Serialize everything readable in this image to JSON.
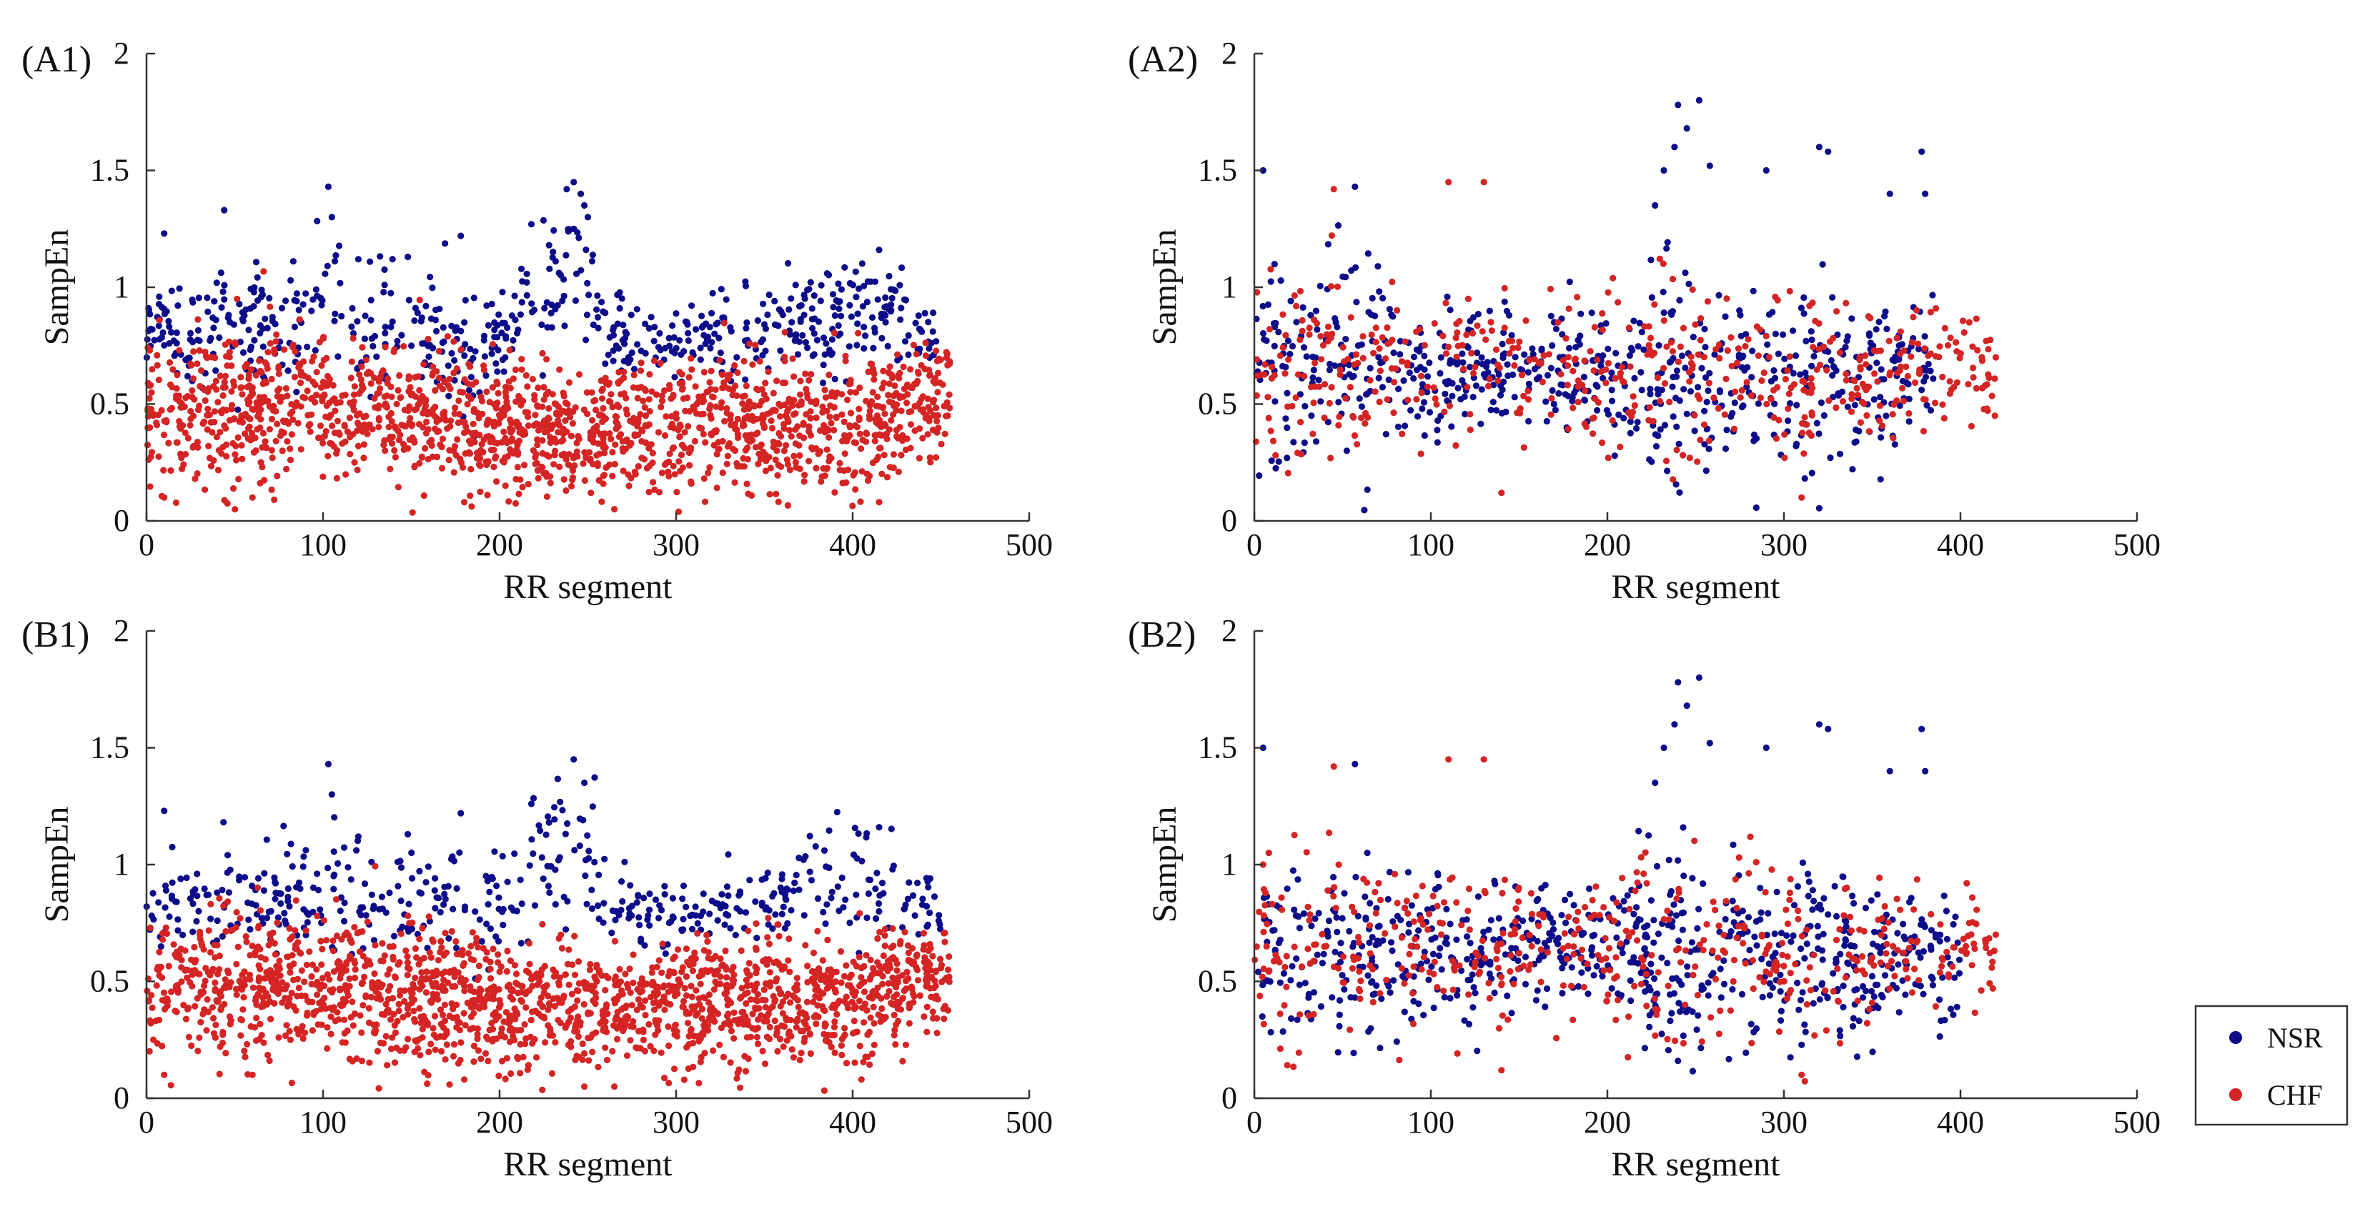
{
  "colors": {
    "NSR": "#0d0d8a",
    "CHF": "#d42424",
    "axis": "#333333"
  },
  "legend": {
    "items": [
      {
        "label": "NSR",
        "color": "#0d0d8a"
      },
      {
        "label": "CHF",
        "color": "#d42424"
      }
    ]
  },
  "chart_data": [
    {
      "id": "A1",
      "panel_label": "(A1)",
      "type": "scatter",
      "xlabel": "RR segment",
      "ylabel": "SampEn",
      "xlim": [
        0,
        500
      ],
      "ylim": [
        0,
        2
      ],
      "xticks": [
        "0",
        "100",
        "200",
        "300",
        "400",
        "500"
      ],
      "yticks": [
        "0",
        "0.5",
        "1",
        "1.5",
        "2"
      ],
      "series": [
        {
          "name": "NSR",
          "color": "#0d0d8a",
          "x_range": [
            0,
            450
          ],
          "n": 620,
          "profile": [
            [
              0,
              0.8,
              0.12
            ],
            [
              50,
              0.82,
              0.12
            ],
            [
              100,
              0.85,
              0.17
            ],
            [
              150,
              0.8,
              0.15
            ],
            [
              200,
              0.72,
              0.12
            ],
            [
              240,
              1.15,
              0.2
            ],
            [
              260,
              0.8,
              0.12
            ],
            [
              300,
              0.78,
              0.08
            ],
            [
              350,
              0.85,
              0.1
            ],
            [
              400,
              0.9,
              0.12
            ],
            [
              450,
              0.78,
              0.08
            ]
          ],
          "highlights": [
            [
              10,
              1.23
            ],
            [
              44,
              1.33
            ],
            [
              103,
              1.43
            ],
            [
              105,
              1.3
            ],
            [
              120,
              1.12
            ],
            [
              148,
              1.13
            ],
            [
              178,
              1.22
            ],
            [
              218,
              1.27
            ],
            [
              228,
              1.18
            ],
            [
              238,
              1.42
            ],
            [
              242,
              1.45
            ],
            [
              246,
              1.4
            ],
            [
              248,
              1.35
            ],
            [
              250,
              1.3
            ],
            [
              415,
              1.16
            ]
          ]
        },
        {
          "name": "CHF",
          "color": "#d42424",
          "x_range": [
            0,
            455
          ],
          "n": 1650,
          "profile": [
            [
              0,
              0.45,
              0.17
            ],
            [
              50,
              0.5,
              0.17
            ],
            [
              100,
              0.5,
              0.15
            ],
            [
              150,
              0.45,
              0.15
            ],
            [
              200,
              0.4,
              0.13
            ],
            [
              250,
              0.38,
              0.13
            ],
            [
              300,
              0.4,
              0.14
            ],
            [
              350,
              0.42,
              0.14
            ],
            [
              400,
              0.42,
              0.14
            ],
            [
              455,
              0.55,
              0.1
            ]
          ],
          "highlights": [
            [
              10,
              0.1
            ],
            [
              60,
              0.1
            ],
            [
              180,
              0.08
            ],
            [
              265,
              0.05
            ],
            [
              415,
              0.08
            ]
          ]
        }
      ]
    },
    {
      "id": "A2",
      "panel_label": "(A2)",
      "type": "scatter",
      "xlabel": "RR segment",
      "ylabel": "SampEn",
      "xlim": [
        0,
        500
      ],
      "ylim": [
        0,
        2
      ],
      "xticks": [
        "0",
        "100",
        "200",
        "300",
        "400",
        "500"
      ],
      "yticks": [
        "0",
        "0.5",
        "1",
        "1.5",
        "2"
      ],
      "series": [
        {
          "name": "NSR",
          "color": "#0d0d8a",
          "x_range": [
            0,
            385
          ],
          "n": 650,
          "profile": [
            [
              0,
              0.65,
              0.2
            ],
            [
              50,
              0.65,
              0.2
            ],
            [
              100,
              0.62,
              0.15
            ],
            [
              150,
              0.65,
              0.12
            ],
            [
              200,
              0.65,
              0.12
            ],
            [
              240,
              0.55,
              0.25
            ],
            [
              270,
              0.65,
              0.18
            ],
            [
              300,
              0.6,
              0.2
            ],
            [
              340,
              0.6,
              0.2
            ],
            [
              385,
              0.7,
              0.15
            ]
          ],
          "highlights": [
            [
              5,
              1.5
            ],
            [
              57,
              1.43
            ],
            [
              227,
              1.35
            ],
            [
              232,
              1.5
            ],
            [
              238,
              1.6
            ],
            [
              240,
              1.78
            ],
            [
              245,
              1.68
            ],
            [
              252,
              1.8
            ],
            [
              258,
              1.52
            ],
            [
              290,
              1.5
            ],
            [
              320,
              1.6
            ],
            [
              325,
              1.58
            ],
            [
              360,
              1.4
            ],
            [
              378,
              1.58
            ],
            [
              380,
              1.4
            ]
          ]
        },
        {
          "name": "CHF",
          "color": "#d42424",
          "x_range": [
            0,
            420
          ],
          "n": 500,
          "profile": [
            [
              0,
              0.6,
              0.2
            ],
            [
              50,
              0.65,
              0.2
            ],
            [
              100,
              0.65,
              0.15
            ],
            [
              150,
              0.65,
              0.15
            ],
            [
              200,
              0.62,
              0.15
            ],
            [
              240,
              0.55,
              0.25
            ],
            [
              280,
              0.7,
              0.15
            ],
            [
              320,
              0.55,
              0.2
            ],
            [
              360,
              0.65,
              0.15
            ],
            [
              420,
              0.65,
              0.1
            ]
          ],
          "highlights": [
            [
              45,
              1.42
            ],
            [
              110,
              1.45
            ],
            [
              130,
              1.45
            ],
            [
              140,
              0.12
            ],
            [
              310,
              0.1
            ],
            [
              405,
              0.85
            ],
            [
              415,
              0.48
            ],
            [
              420,
              0.7
            ]
          ]
        }
      ]
    },
    {
      "id": "B1",
      "panel_label": "(B1)",
      "type": "scatter",
      "xlabel": "RR segment",
      "ylabel": "SampEn",
      "xlim": [
        0,
        500
      ],
      "ylim": [
        0,
        2
      ],
      "xticks": [
        "0",
        "100",
        "200",
        "300",
        "400",
        "500"
      ],
      "yticks": [
        "0",
        "0.5",
        "1",
        "1.5",
        "2"
      ],
      "series": [
        {
          "name": "NSR",
          "color": "#0d0d8a",
          "x_range": [
            0,
            450
          ],
          "n": 480,
          "profile": [
            [
              0,
              0.8,
              0.1
            ],
            [
              50,
              0.85,
              0.12
            ],
            [
              100,
              0.9,
              0.15
            ],
            [
              150,
              0.85,
              0.15
            ],
            [
              200,
              0.78,
              0.12
            ],
            [
              240,
              1.1,
              0.2
            ],
            [
              260,
              0.8,
              0.1
            ],
            [
              300,
              0.78,
              0.08
            ],
            [
              350,
              0.85,
              0.1
            ],
            [
              400,
              0.95,
              0.12
            ],
            [
              450,
              0.78,
              0.08
            ]
          ],
          "highlights": [
            [
              10,
              1.23
            ],
            [
              103,
              1.43
            ],
            [
              105,
              1.3
            ],
            [
              120,
              1.12
            ],
            [
              148,
              1.13
            ],
            [
              178,
              1.22
            ],
            [
              218,
              1.26
            ],
            [
              228,
              1.18
            ],
            [
              242,
              1.45
            ],
            [
              248,
              1.35
            ],
            [
              415,
              1.16
            ]
          ]
        },
        {
          "name": "CHF",
          "color": "#d42424",
          "x_range": [
            0,
            455
          ],
          "n": 1750,
          "profile": [
            [
              0,
              0.45,
              0.17
            ],
            [
              50,
              0.5,
              0.17
            ],
            [
              100,
              0.5,
              0.15
            ],
            [
              150,
              0.45,
              0.15
            ],
            [
              200,
              0.4,
              0.13
            ],
            [
              250,
              0.38,
              0.13
            ],
            [
              300,
              0.4,
              0.14
            ],
            [
              350,
              0.42,
              0.14
            ],
            [
              400,
              0.42,
              0.14
            ],
            [
              455,
              0.55,
              0.1
            ]
          ],
          "highlights": [
            [
              10,
              0.1
            ],
            [
              60,
              0.1
            ],
            [
              180,
              0.08
            ],
            [
              265,
              0.05
            ],
            [
              405,
              0.08
            ]
          ]
        }
      ]
    },
    {
      "id": "B2",
      "panel_label": "(B2)",
      "type": "scatter",
      "xlabel": "RR segment",
      "ylabel": "SampEn",
      "xlim": [
        0,
        500
      ],
      "ylim": [
        0,
        2
      ],
      "xticks": [
        "0",
        "100",
        "200",
        "300",
        "400",
        "500"
      ],
      "yticks": [
        "0",
        "0.5",
        "1",
        "1.5",
        "2"
      ],
      "series": [
        {
          "name": "NSR",
          "color": "#0d0d8a",
          "x_range": [
            0,
            400
          ],
          "n": 720,
          "profile": [
            [
              0,
              0.65,
              0.2
            ],
            [
              50,
              0.65,
              0.2
            ],
            [
              100,
              0.62,
              0.15
            ],
            [
              150,
              0.65,
              0.12
            ],
            [
              200,
              0.65,
              0.12
            ],
            [
              240,
              0.6,
              0.25
            ],
            [
              270,
              0.65,
              0.18
            ],
            [
              300,
              0.6,
              0.2
            ],
            [
              340,
              0.6,
              0.2
            ],
            [
              400,
              0.6,
              0.15
            ]
          ],
          "highlights": [
            [
              5,
              1.5
            ],
            [
              57,
              1.43
            ],
            [
              227,
              1.35
            ],
            [
              232,
              1.5
            ],
            [
              238,
              1.6
            ],
            [
              240,
              1.78
            ],
            [
              245,
              1.68
            ],
            [
              252,
              1.8
            ],
            [
              258,
              1.52
            ],
            [
              290,
              1.5
            ],
            [
              320,
              1.6
            ],
            [
              325,
              1.58
            ],
            [
              360,
              1.4
            ],
            [
              378,
              1.58
            ],
            [
              380,
              1.4
            ]
          ]
        },
        {
          "name": "CHF",
          "color": "#d42424",
          "x_range": [
            0,
            420
          ],
          "n": 480,
          "profile": [
            [
              0,
              0.6,
              0.2
            ],
            [
              50,
              0.65,
              0.2
            ],
            [
              100,
              0.65,
              0.15
            ],
            [
              150,
              0.65,
              0.15
            ],
            [
              200,
              0.62,
              0.15
            ],
            [
              240,
              0.55,
              0.25
            ],
            [
              280,
              0.7,
              0.15
            ],
            [
              320,
              0.55,
              0.2
            ],
            [
              360,
              0.65,
              0.15
            ],
            [
              420,
              0.65,
              0.1
            ]
          ],
          "highlights": [
            [
              5,
              1.0
            ],
            [
              45,
              1.42
            ],
            [
              110,
              1.45
            ],
            [
              130,
              1.45
            ],
            [
              140,
              0.12
            ],
            [
              310,
              0.1
            ],
            [
              405,
              0.75
            ],
            [
              420,
              0.7
            ]
          ]
        }
      ]
    }
  ]
}
